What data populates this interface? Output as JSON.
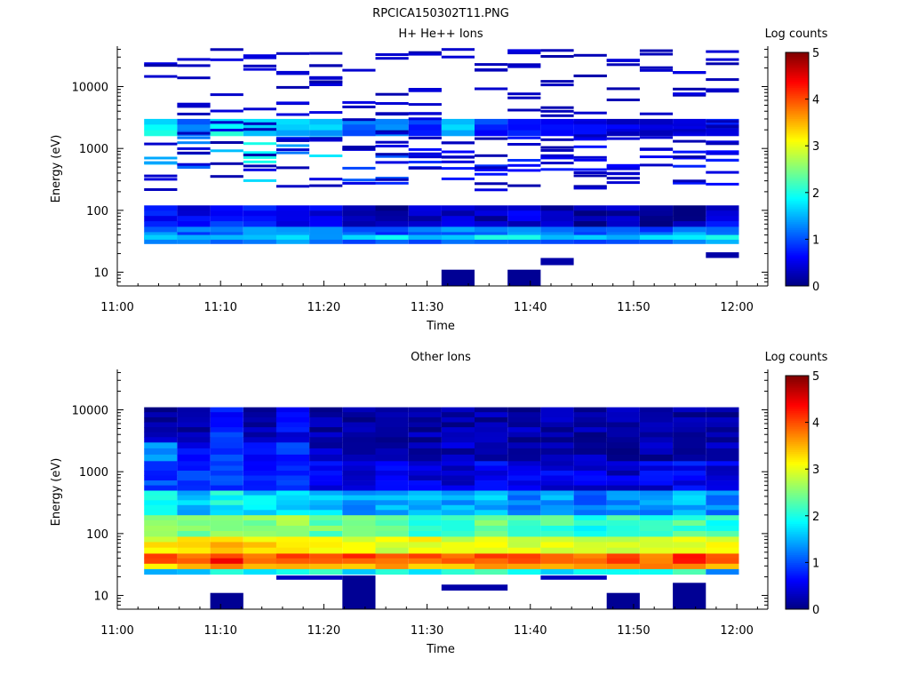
{
  "figure_title": "RPCICA150302T11.PNG",
  "chart_data": [
    {
      "type": "heatmap",
      "title": "H+ He++ Ions",
      "xlabel": "Time",
      "ylabel": "Energy (eV)",
      "y_scale": "log",
      "ylim": [
        6,
        45000
      ],
      "xlim": [
        "11:00",
        "12:03"
      ],
      "x_ticks": [
        "11:00",
        "11:10",
        "11:20",
        "11:30",
        "11:40",
        "11:50",
        "12:00"
      ],
      "y_ticks": [
        "10",
        "100",
        "1000",
        "10000"
      ],
      "colorbar": {
        "label": "Log counts",
        "range": [
          0,
          5
        ],
        "ticks": [
          "0",
          "1",
          "2",
          "3",
          "4",
          "5"
        ],
        "colormap": "jet"
      },
      "time_bins_start": [
        "11:02.6",
        "11:05.8",
        "11:09.0",
        "11:12.2",
        "11:15.4",
        "11:18.6",
        "11:21.8",
        "11:25.0",
        "11:28.2",
        "11:31.4",
        "11:34.6",
        "11:37.8",
        "11:41.0",
        "11:44.2",
        "11:47.4",
        "11:50.6",
        "11:53.8",
        "11:57.0"
      ],
      "bands": [
        {
          "from": 29,
          "to": 55,
          "values": [
            1.2,
            1.1,
            1.3,
            1.2,
            1.4,
            1.2,
            1.0,
            1.0,
            1.1,
            1.2,
            1.3,
            1.3,
            1.1,
            1.0,
            1.1,
            1.0,
            1.3,
            1.3
          ]
        },
        {
          "from": 34,
          "to": 40,
          "values": [
            1.6,
            1.5,
            1.7,
            1.6,
            1.9,
            1.6,
            1.6,
            1.8,
            1.7,
            1.6,
            1.9,
            1.8,
            1.6,
            1.7,
            1.4,
            1.6,
            1.8,
            2.0
          ]
        },
        {
          "from": 55,
          "to": 120,
          "values": [
            0.6,
            0.5,
            0.8,
            0.7,
            0.6,
            0.5,
            0.3,
            0.2,
            0.3,
            0.4,
            0.3,
            0.4,
            0.2,
            0.1,
            0.2,
            0.1,
            0.2,
            0.5
          ]
        },
        {
          "from": 250,
          "to": 1600,
          "values": [
            1.4,
            1.0,
            1.5,
            1.7,
            1.2,
            1.6,
            0.9,
            0.8,
            0.6,
            0.5,
            0.6,
            0.6,
            0.5,
            0.5,
            0.4,
            0.5,
            0.6,
            0.6
          ]
        },
        {
          "from": 1600,
          "to": 3000,
          "values": [
            1.8,
            1.2,
            1.9,
            1.8,
            1.6,
            1.5,
            1.1,
            1.3,
            0.9,
            1.6,
            0.8,
            0.7,
            0.7,
            0.6,
            0.5,
            0.5,
            0.7,
            0.6
          ]
        },
        {
          "from": 200,
          "to": 42000,
          "values": [
            0.2,
            0.2,
            0.2,
            0.2,
            0.2,
            0.2,
            0.2,
            0.2,
            0.2,
            0.2,
            0.2,
            0.2,
            0.2,
            0.2,
            0.2,
            0.2,
            0.2,
            0.2
          ]
        }
      ],
      "low_blocks": [
        {
          "t_start": "11:31.4",
          "t_end": "11:34.6",
          "e_from": 6,
          "e_to": 11,
          "value": 0.1
        },
        {
          "t_start": "11:37.8",
          "t_end": "11:41.0",
          "e_from": 6,
          "e_to": 11,
          "value": 0.1
        },
        {
          "t_start": "11:41.0",
          "t_end": "11:44.2",
          "e_from": 13,
          "e_to": 17,
          "value": 0.2
        },
        {
          "t_start": "11:57.0",
          "t_end": "12:00.2",
          "e_from": 17,
          "e_to": 21,
          "value": 0.2
        }
      ]
    },
    {
      "type": "heatmap",
      "title": "Other Ions",
      "xlabel": "Time",
      "ylabel": "Energy (eV)",
      "y_scale": "log",
      "ylim": [
        6,
        45000
      ],
      "xlim": [
        "11:00",
        "12:03"
      ],
      "x_ticks": [
        "11:00",
        "11:10",
        "11:20",
        "11:30",
        "11:40",
        "11:50",
        "12:00"
      ],
      "y_ticks": [
        "10",
        "100",
        "1000",
        "10000"
      ],
      "colorbar": {
        "label": "Log counts",
        "range": [
          0,
          5
        ],
        "ticks": [
          "0",
          "1",
          "2",
          "3",
          "4",
          "5"
        ],
        "colormap": "jet"
      },
      "time_bins_start": [
        "11:02.6",
        "11:05.8",
        "11:09.0",
        "11:12.2",
        "11:15.4",
        "11:18.6",
        "11:21.8",
        "11:25.0",
        "11:28.2",
        "11:31.4",
        "11:34.6",
        "11:37.8",
        "11:41.0",
        "11:44.2",
        "11:47.4",
        "11:50.6",
        "11:53.8",
        "11:57.0"
      ],
      "bands": [
        {
          "from": 22,
          "to": 27,
          "values": [
            1.6,
            1.8,
            1.9,
            1.8,
            2.2,
            2.0,
            1.6,
            2.3,
            1.9,
            2.0,
            2.3,
            1.8,
            1.8,
            1.7,
            2.0,
            2.0,
            2.2,
            1.2
          ]
        },
        {
          "from": 27,
          "to": 33,
          "values": [
            3.4,
            3.5,
            3.7,
            3.6,
            3.7,
            3.4,
            3.5,
            3.6,
            3.4,
            3.5,
            3.5,
            3.4,
            3.5,
            3.4,
            3.6,
            3.6,
            3.7,
            3.6
          ]
        },
        {
          "from": 33,
          "to": 48,
          "values": [
            3.9,
            4.0,
            4.2,
            3.9,
            4.1,
            3.9,
            4.0,
            3.8,
            3.9,
            4.0,
            4.0,
            3.9,
            3.9,
            3.9,
            4.0,
            3.9,
            4.1,
            3.9
          ]
        },
        {
          "from": 48,
          "to": 90,
          "values": [
            3.1,
            3.2,
            3.5,
            3.3,
            3.2,
            3.1,
            3.0,
            3.0,
            3.0,
            3.0,
            3.1,
            3.0,
            3.0,
            2.9,
            2.9,
            2.9,
            3.0,
            3.0
          ]
        },
        {
          "from": 90,
          "to": 200,
          "values": [
            2.5,
            2.4,
            2.7,
            2.6,
            2.6,
            2.4,
            2.3,
            2.3,
            2.2,
            2.2,
            2.4,
            2.2,
            2.2,
            2.0,
            2.1,
            2.1,
            2.2,
            2.1
          ]
        },
        {
          "from": 200,
          "to": 500,
          "values": [
            1.8,
            1.6,
            1.9,
            1.7,
            1.7,
            1.6,
            1.4,
            1.5,
            1.5,
            1.4,
            1.5,
            1.3,
            1.4,
            1.2,
            1.3,
            1.4,
            1.5,
            1.3
          ]
        },
        {
          "from": 500,
          "to": 1500,
          "values": [
            0.9,
            0.8,
            1.0,
            0.8,
            0.8,
            0.6,
            0.5,
            0.5,
            0.5,
            0.4,
            0.6,
            0.5,
            0.5,
            0.5,
            0.4,
            0.5,
            0.6,
            0.5
          ]
        },
        {
          "from": 1500,
          "to": 3000,
          "values": [
            1.2,
            0.7,
            1.0,
            0.8,
            0.9,
            0.3,
            0.3,
            0.3,
            0.2,
            0.3,
            0.3,
            0.2,
            0.3,
            0.2,
            0.2,
            0.2,
            0.3,
            0.3
          ]
        },
        {
          "from": 3000,
          "to": 11000,
          "values": [
            0.2,
            0.2,
            0.8,
            0.2,
            0.6,
            0.2,
            0.2,
            0.2,
            0.2,
            0.2,
            0.2,
            0.2,
            0.2,
            0.2,
            0.2,
            0.2,
            0.2,
            0.2
          ]
        }
      ],
      "low_blocks": [
        {
          "t_start": "11:09.0",
          "t_end": "11:12.2",
          "e_from": 6,
          "e_to": 11,
          "value": 0.1
        },
        {
          "t_start": "11:15.4",
          "t_end": "11:21.8",
          "e_from": 18,
          "e_to": 21,
          "value": 0.3
        },
        {
          "t_start": "11:21.8",
          "t_end": "11:25.0",
          "e_from": 6,
          "e_to": 21,
          "value": 0.1
        },
        {
          "t_start": "11:31.4",
          "t_end": "11:37.8",
          "e_from": 12,
          "e_to": 15,
          "value": 0.2
        },
        {
          "t_start": "11:41.0",
          "t_end": "11:47.4",
          "e_from": 18,
          "e_to": 21,
          "value": 0.3
        },
        {
          "t_start": "11:47.4",
          "t_end": "11:50.6",
          "e_from": 6,
          "e_to": 11,
          "value": 0.1
        },
        {
          "t_start": "11:53.8",
          "t_end": "11:57.0",
          "e_from": 6,
          "e_to": 16,
          "value": 0.1
        }
      ]
    }
  ]
}
